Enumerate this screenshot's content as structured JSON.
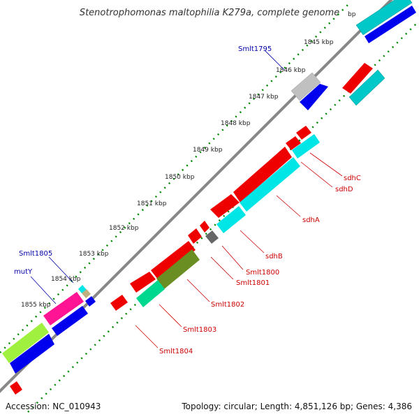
{
  "header": {
    "title": "Stenotrophomonas maltophilia K279a, complete genome"
  },
  "footer": {
    "accession": "Accession: NC_010943",
    "summary": "Topology: circular; Length: 4,851,126 bp; Genes: 4,386"
  },
  "ruler": {
    "partial_top_label": "bp",
    "ticks": [
      "1845 kbp",
      "1846 kbp",
      "1847 kbp",
      "1848 kbp",
      "1849 kbp",
      "1850 kbp",
      "1851 kbp",
      "1852 kbp",
      "1853 kbp",
      "1854 kbp",
      "1855 kbp"
    ]
  },
  "gene_labels": {
    "smlt1795": "Smlt1795",
    "smlt1805": "Smlt1805",
    "muty": "mutY",
    "sdhc": "sdhC",
    "sdhd": "sdhD",
    "sdha": "sdhA",
    "sdhb": "sdhB",
    "smlt1800": "Smlt1800",
    "smlt1801": "Smlt1801",
    "smlt1802": "Smlt1802",
    "smlt1803": "Smlt1803",
    "smlt1804": "Smlt1804"
  },
  "colors": {
    "red_gene": "#ee0000",
    "blue_gene": "#0000ee",
    "cyan_gene": "#00e5e5",
    "teal_gene": "#00c8c8",
    "gray_gene": "#c0c0c0",
    "olive_gene": "#6b8e23",
    "green_gene": "#00d890",
    "pink_gene": "#ff1493",
    "lime_gene": "#a0f040",
    "backbone": "#888888",
    "dots": "#008800"
  }
}
